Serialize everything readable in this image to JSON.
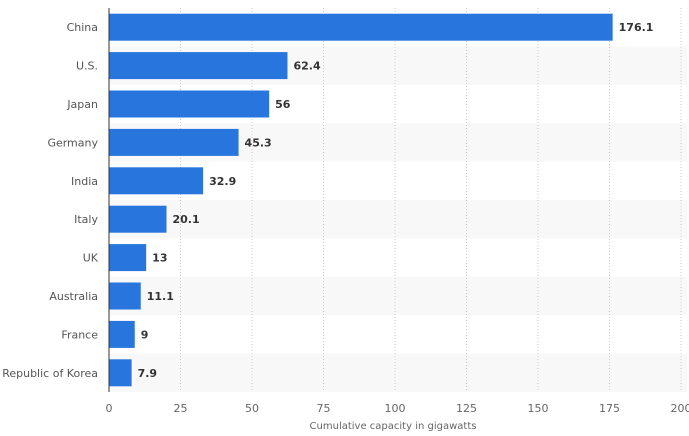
{
  "chart_data": {
    "type": "bar",
    "orientation": "horizontal",
    "categories": [
      "China",
      "U.S.",
      "Japan",
      "Germany",
      "India",
      "Italy",
      "UK",
      "Australia",
      "France",
      "Republic of Korea"
    ],
    "values": [
      176.1,
      62.4,
      56,
      45.3,
      32.9,
      20.1,
      13,
      11.1,
      9,
      7.9
    ],
    "value_labels": [
      "176.1",
      "62.4",
      "56",
      "45.3",
      "32.9",
      "20.1",
      "13",
      "11.1",
      "9",
      "7.9"
    ],
    "title": "",
    "xlabel": "Cumulative capacity in gigawatts",
    "ylabel": "",
    "xlim": [
      0,
      200
    ],
    "xticks": [
      "0",
      "25",
      "50",
      "75",
      "100",
      "125",
      "150",
      "175",
      "200"
    ],
    "grid": true,
    "bar_color": "#2876dd"
  }
}
